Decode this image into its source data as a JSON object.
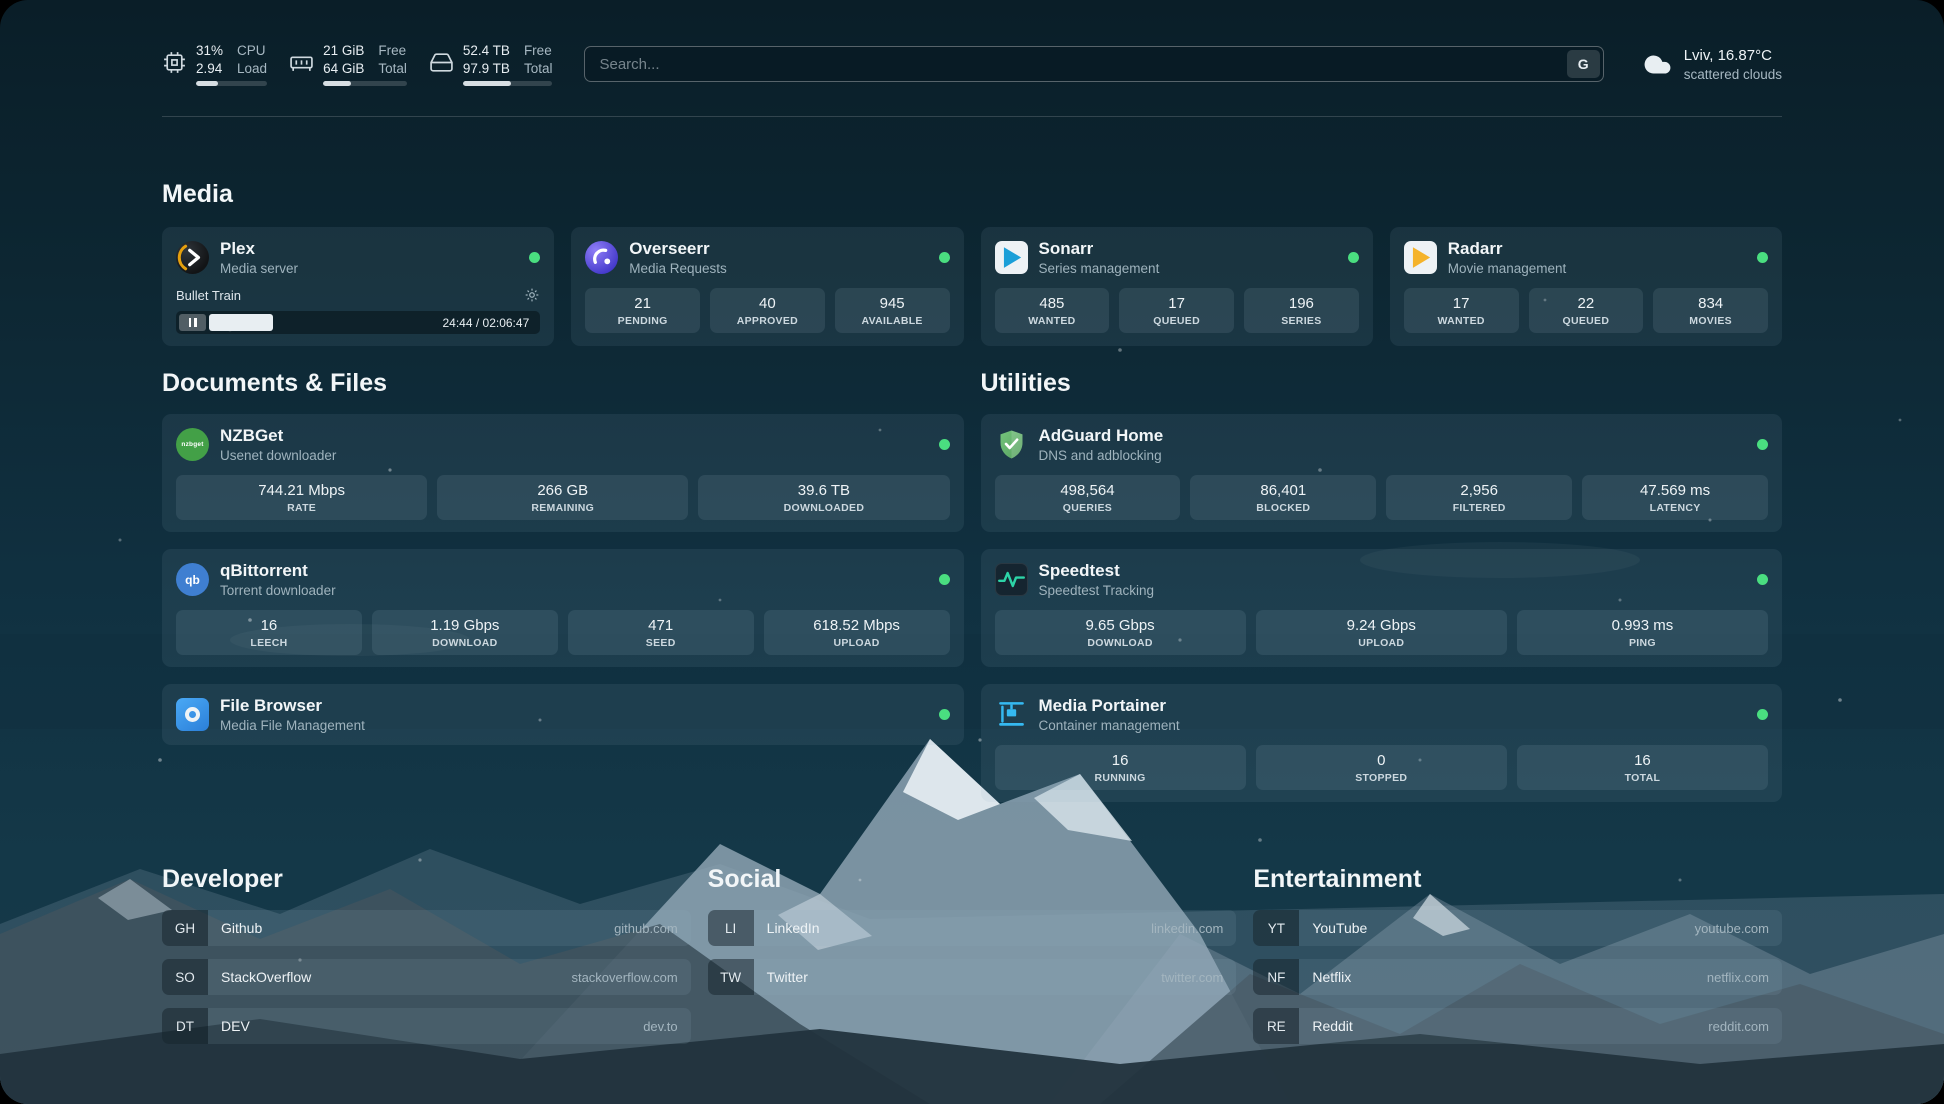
{
  "topbar": {
    "cpu": {
      "value_top": "31%",
      "value_bottom": "2.94",
      "label_top": "CPU",
      "label_bottom": "Load",
      "percent": 31
    },
    "memory": {
      "value_top": "21 GiB",
      "value_bottom": "64 GiB",
      "label_top": "Free",
      "label_bottom": "Total",
      "percent": 33
    },
    "disk": {
      "value_top": "52.4 TB",
      "value_bottom": "97.9 TB",
      "label_top": "Free",
      "label_bottom": "Total",
      "percent": 54
    },
    "search": {
      "placeholder": "Search...",
      "provider_label": "G"
    },
    "weather": {
      "location": "Lviv, 16.87°C",
      "condition": "scattered clouds"
    }
  },
  "media": {
    "title": "Media",
    "plex": {
      "name": "Plex",
      "desc": "Media server",
      "status": "online",
      "now_playing": {
        "title": "Bullet Train",
        "time": "24:44 / 02:06:47",
        "progress_percent": 19.5
      }
    },
    "overseerr": {
      "name": "Overseerr",
      "desc": "Media Requests",
      "status": "online",
      "stats": [
        {
          "value": "21",
          "label": "PENDING"
        },
        {
          "value": "40",
          "label": "APPROVED"
        },
        {
          "value": "945",
          "label": "AVAILABLE"
        }
      ]
    },
    "sonarr": {
      "name": "Sonarr",
      "desc": "Series management",
      "status": "online",
      "stats": [
        {
          "value": "485",
          "label": "WANTED"
        },
        {
          "value": "17",
          "label": "QUEUED"
        },
        {
          "value": "196",
          "label": "SERIES"
        }
      ]
    },
    "radarr": {
      "name": "Radarr",
      "desc": "Movie management",
      "status": "online",
      "stats": [
        {
          "value": "17",
          "label": "WANTED"
        },
        {
          "value": "22",
          "label": "QUEUED"
        },
        {
          "value": "834",
          "label": "MOVIES"
        }
      ]
    }
  },
  "documents": {
    "title": "Documents & Files",
    "nzbget": {
      "name": "NZBGet",
      "desc": "Usenet downloader",
      "status": "online",
      "icon_text": "nzbget",
      "stats": [
        {
          "value": "744.21 Mbps",
          "label": "RATE"
        },
        {
          "value": "266 GB",
          "label": "REMAINING"
        },
        {
          "value": "39.6 TB",
          "label": "DOWNLOADED"
        }
      ]
    },
    "qbittorrent": {
      "name": "qBittorrent",
      "desc": "Torrent downloader",
      "status": "online",
      "icon_text": "qb",
      "stats": [
        {
          "value": "16",
          "label": "LEECH"
        },
        {
          "value": "1.19 Gbps",
          "label": "DOWNLOAD"
        },
        {
          "value": "471",
          "label": "SEED"
        },
        {
          "value": "618.52 Mbps",
          "label": "UPLOAD"
        }
      ]
    },
    "filebrowser": {
      "name": "File Browser",
      "desc": "Media File Management",
      "status": "online"
    }
  },
  "utilities": {
    "title": "Utilities",
    "adguard": {
      "name": "AdGuard Home",
      "desc": "DNS and adblocking",
      "status": "online",
      "stats": [
        {
          "value": "498,564",
          "label": "QUERIES"
        },
        {
          "value": "86,401",
          "label": "BLOCKED"
        },
        {
          "value": "2,956",
          "label": "FILTERED"
        },
        {
          "value": "47.569 ms",
          "label": "LATENCY"
        }
      ]
    },
    "speedtest": {
      "name": "Speedtest",
      "desc": "Speedtest Tracking",
      "status": "online",
      "stats": [
        {
          "value": "9.65 Gbps",
          "label": "DOWNLOAD"
        },
        {
          "value": "9.24 Gbps",
          "label": "UPLOAD"
        },
        {
          "value": "0.993 ms",
          "label": "PING"
        }
      ]
    },
    "portainer": {
      "name": "Media Portainer",
      "desc": "Container management",
      "status": "online",
      "stats": [
        {
          "value": "16",
          "label": "RUNNING"
        },
        {
          "value": "0",
          "label": "STOPPED"
        },
        {
          "value": "16",
          "label": "TOTAL"
        }
      ]
    }
  },
  "bookmarks": {
    "developer": {
      "title": "Developer",
      "items": [
        {
          "abbr": "GH",
          "name": "Github",
          "url": "github.com"
        },
        {
          "abbr": "SO",
          "name": "StackOverflow",
          "url": "stackoverflow.com"
        },
        {
          "abbr": "DT",
          "name": "DEV",
          "url": "dev.to"
        }
      ]
    },
    "social": {
      "title": "Social",
      "items": [
        {
          "abbr": "LI",
          "name": "LinkedIn",
          "url": "linkedin.com"
        },
        {
          "abbr": "TW",
          "name": "Twitter",
          "url": "twitter.com"
        }
      ]
    },
    "entertainment": {
      "title": "Entertainment",
      "items": [
        {
          "abbr": "YT",
          "name": "YouTube",
          "url": "youtube.com"
        },
        {
          "abbr": "NF",
          "name": "Netflix",
          "url": "netflix.com"
        },
        {
          "abbr": "RE",
          "name": "Reddit",
          "url": "reddit.com"
        }
      ]
    }
  },
  "colors": {
    "status_online": "#4ade80",
    "accent_green": "#2dd4a7",
    "plex_amber": "#e5a00d"
  }
}
